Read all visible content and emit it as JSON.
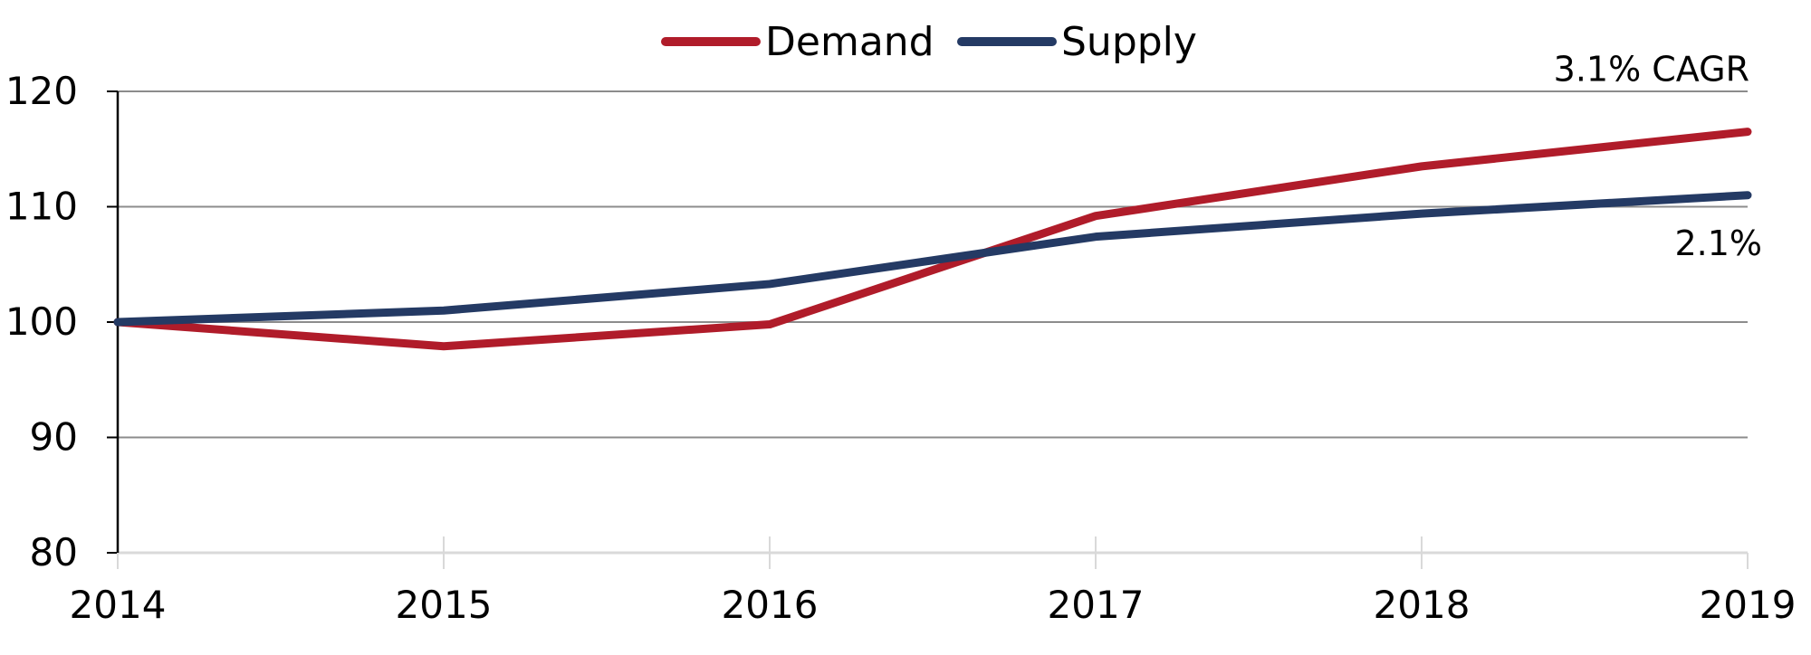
{
  "chart_data": {
    "type": "line",
    "title": "",
    "xlabel": "",
    "ylabel": "",
    "x": [
      "2014",
      "2015",
      "2016",
      "2017",
      "2018",
      "2019"
    ],
    "ylim": [
      80,
      120
    ],
    "yticks": [
      "80",
      "90",
      "100",
      "110",
      "120"
    ],
    "grid": true,
    "legend_position": "top-center",
    "series": [
      {
        "name": "Demand",
        "color": "#B01C2A",
        "values": [
          100,
          97.9,
          99.8,
          109.2,
          113.5,
          116.5
        ]
      },
      {
        "name": "Supply",
        "color": "#243A64",
        "values": [
          100,
          101.0,
          103.3,
          107.4,
          109.4,
          111.0
        ]
      }
    ],
    "annotations": [
      {
        "text": "3.1% CAGR",
        "series": "Demand"
      },
      {
        "text": "2.1%",
        "series": "Supply"
      }
    ]
  }
}
